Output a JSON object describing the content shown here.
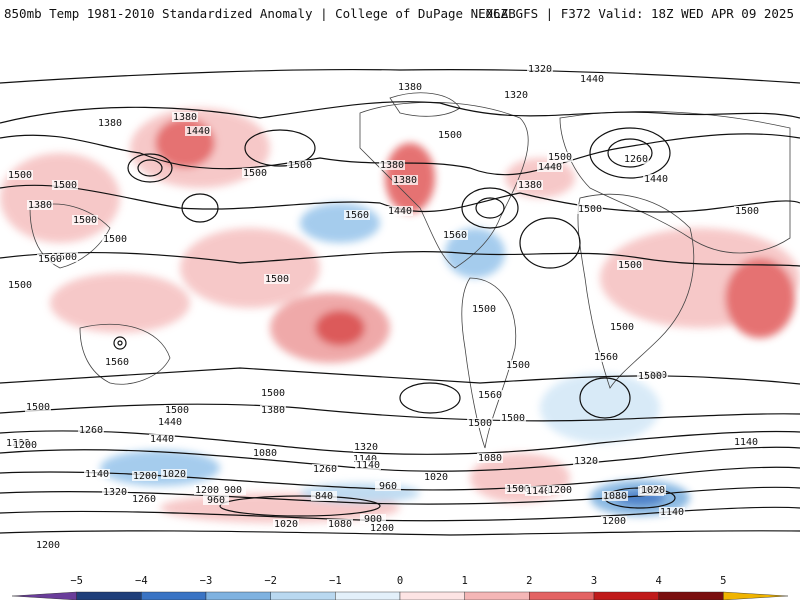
{
  "header": {
    "left_title": "850mb Temp 1981-2010 Standardized Anomaly | College of DuPage NEXLAB",
    "right_title": "06Z GFS | F372 Valid: 18Z WED APR 09 2025"
  },
  "contour_labels": [
    "1320",
    "1380",
    "1440",
    "1380",
    "1320",
    "1380",
    "1440",
    "1500",
    "1260",
    "1380",
    "1440",
    "1440",
    "1500",
    "1380",
    "1500",
    "1500",
    "1500",
    "1380",
    "1500",
    "1440",
    "1560",
    "1560",
    "1500",
    "1500",
    "1500",
    "1380",
    "1500",
    "1500",
    "1500",
    "1560",
    "1500",
    "1500",
    "1500",
    "1560",
    "1500",
    "1560",
    "1500",
    "1380",
    "1500",
    "1500",
    "1500",
    "1440",
    "1380",
    "1260",
    "1200",
    "1440",
    "1320",
    "1200",
    "1080",
    "1140",
    "1140",
    "1260",
    "1200",
    "1080",
    "1020",
    "1140",
    "1320",
    "1260",
    "1200",
    "1320",
    "900",
    "960",
    "840",
    "960",
    "1020",
    "1080",
    "900",
    "1020",
    "1080",
    "1200",
    "1140",
    "1080",
    "1020",
    "1200",
    "1140",
    "1500",
    "1560",
    "1500",
    "1500",
    "1500",
    "1140",
    "1200",
    "1200"
  ],
  "colorbar": {
    "ticks": [
      "−5",
      "−4",
      "−3",
      "−2",
      "−1",
      "0",
      "1",
      "2",
      "3",
      "4",
      "5"
    ],
    "colors": [
      "#6a3d9a",
      "#1f3f7a",
      "#3a74c4",
      "#7fb2e0",
      "#b9d8f0",
      "#e3f0fa",
      "#fde4e4",
      "#f4b6b6",
      "#e36363",
      "#c01a1a",
      "#7a0f0f",
      "#f0b400"
    ]
  }
}
